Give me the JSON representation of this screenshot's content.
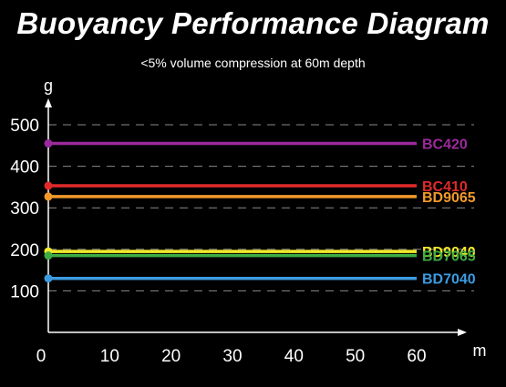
{
  "chart_data": {
    "type": "line",
    "title": "Buoyancy Performance Diagram",
    "subtitle": "<5% volume compression at 60m depth",
    "xlabel": "m",
    "ylabel": "g",
    "xlim": [
      0,
      60
    ],
    "ylim": [
      0,
      500
    ],
    "x_ticks": [
      0,
      10,
      20,
      30,
      40,
      50,
      60
    ],
    "y_ticks": [
      100,
      200,
      300,
      400,
      500
    ],
    "grid": true,
    "legend": "inline-right",
    "series": [
      {
        "name": "BC420",
        "color": "#9b2a9c",
        "x": [
          0,
          60
        ],
        "values": [
          455,
          455
        ]
      },
      {
        "name": "BC410",
        "color": "#e02a2a",
        "x": [
          0,
          60
        ],
        "values": [
          353,
          353
        ]
      },
      {
        "name": "BD9065",
        "color": "#f39a2b",
        "x": [
          0,
          60
        ],
        "values": [
          327,
          327
        ]
      },
      {
        "name": "BD9040",
        "color": "#f2ea2a",
        "x": [
          0,
          60
        ],
        "values": [
          195,
          195
        ]
      },
      {
        "name": "BD7065",
        "color": "#3dac44",
        "x": [
          0,
          60
        ],
        "values": [
          185,
          185
        ]
      },
      {
        "name": "BD7040",
        "color": "#3c9be0",
        "x": [
          0,
          60
        ],
        "values": [
          130,
          130
        ]
      }
    ]
  }
}
